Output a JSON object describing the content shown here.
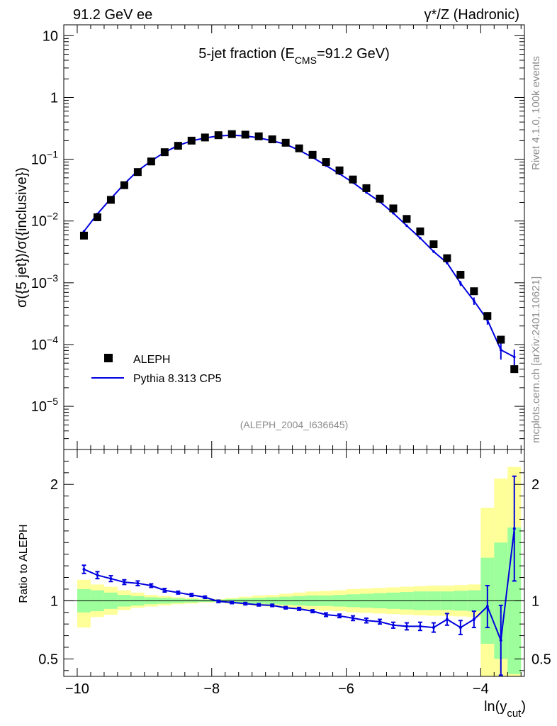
{
  "header": {
    "left": "91.2 GeV ee",
    "right": "γ*/Z (Hadronic)"
  },
  "side_labels": {
    "rivet": "Rivet 4.1.0,  100k events",
    "mcplots": "mcplots.cern.ch [arXiv:2401.10621]"
  },
  "colors": {
    "data": "#000000",
    "mc": "#0000e0",
    "band_inner": "#9cff9c",
    "band_outer": "#ffff99"
  },
  "chart_data": [
    {
      "type": "scatter",
      "title": "5-jet fraction",
      "title_main": "5-jet fraction (E",
      "title_sub": "CMS",
      "title_tail": "=91.2 GeV)",
      "ylabel": "σ({5 jet})/σ({inclusive})",
      "xlabel": "ln(y",
      "xlabel_sub": "cut",
      "xlabel_tail": ")",
      "yscale": "log",
      "xlim": [
        -10.2,
        -3.35
      ],
      "ylim": [
        2e-06,
        15
      ],
      "y_ticks": [
        {
          "value": 10,
          "label": "10"
        },
        {
          "value": 1,
          "label": "1"
        },
        {
          "value": 0.1,
          "base": "10",
          "exp": "−1"
        },
        {
          "value": 0.01,
          "base": "10",
          "exp": "−2"
        },
        {
          "value": 0.001,
          "base": "10",
          "exp": "−3"
        },
        {
          "value": 0.0001,
          "base": "10",
          "exp": "−4"
        },
        {
          "value": 1e-05,
          "base": "10",
          "exp": "−5"
        }
      ],
      "analysis_tag": "(ALEPH_2004_I636645)",
      "legend": {
        "position": "lower-left",
        "entries": [
          "ALEPH",
          "Pythia 8.313 CP5"
        ]
      },
      "series": [
        {
          "name": "ALEPH",
          "x": [
            -9.9,
            -9.7,
            -9.5,
            -9.3,
            -9.1,
            -8.9,
            -8.7,
            -8.5,
            -8.3,
            -8.1,
            -7.9,
            -7.7,
            -7.5,
            -7.3,
            -7.1,
            -6.9,
            -6.7,
            -6.5,
            -6.3,
            -6.1,
            -5.9,
            -5.7,
            -5.5,
            -5.3,
            -5.1,
            -4.9,
            -4.7,
            -4.5,
            -4.3,
            -4.1,
            -3.9,
            -3.7,
            -3.5
          ],
          "y": [
            0.0058,
            0.0115,
            0.022,
            0.038,
            0.062,
            0.092,
            0.13,
            0.165,
            0.2,
            0.225,
            0.245,
            0.255,
            0.25,
            0.235,
            0.21,
            0.185,
            0.15,
            0.118,
            0.09,
            0.066,
            0.047,
            0.034,
            0.023,
            0.016,
            0.0108,
            0.0068,
            0.0042,
            0.0025,
            0.00135,
            0.00073,
            0.00029,
            0.00012,
            4e-05
          ]
        },
        {
          "name": "Pythia 8.313 CP5",
          "x": [
            -9.9,
            -9.7,
            -9.5,
            -9.3,
            -9.1,
            -8.9,
            -8.7,
            -8.5,
            -8.3,
            -8.1,
            -7.9,
            -7.7,
            -7.5,
            -7.3,
            -7.1,
            -6.9,
            -6.7,
            -6.5,
            -6.3,
            -6.1,
            -5.9,
            -5.7,
            -5.5,
            -5.3,
            -5.1,
            -4.9,
            -4.7,
            -4.5,
            -4.3,
            -4.1,
            -3.9,
            -3.7,
            -3.5
          ],
          "y": [
            0.0068,
            0.013,
            0.023,
            0.04,
            0.065,
            0.094,
            0.13,
            0.167,
            0.198,
            0.221,
            0.238,
            0.245,
            0.238,
            0.222,
            0.199,
            0.175,
            0.14,
            0.107,
            0.079,
            0.058,
            0.042,
            0.029,
            0.0205,
            0.0134,
            0.0084,
            0.0053,
            0.0032,
            0.0021,
            0.00098,
            0.00051,
            0.00025,
            8.2e-05,
            6.3e-05
          ],
          "yerr": [
            0.0002,
            0.0003,
            0.0004,
            0.0006,
            0.0008,
            0.001,
            0.0012,
            0.0013,
            0.0015,
            0.0016,
            0.0017,
            0.0017,
            0.0017,
            0.0016,
            0.0015,
            0.0014,
            0.0012,
            0.001,
            0.0009,
            0.0007,
            0.0006,
            0.0005,
            0.0004,
            0.0003,
            0.00025,
            0.0002,
            0.00015,
            0.00012,
            9e-05,
            7e-05,
            4e-05,
            2.5e-05,
            2e-05
          ]
        }
      ]
    },
    {
      "type": "line",
      "ylabel": "Ratio to ALEPH",
      "xlim": [
        -10.2,
        -3.35
      ],
      "ylim": [
        0.35,
        2.3
      ],
      "x_ticks": [
        -10,
        -8,
        -6,
        -4
      ],
      "x_tick_labels": [
        "−10",
        "−8",
        "−6",
        "−4"
      ],
      "y_ticks": [
        0.5,
        1,
        2
      ],
      "y_tick_labels": [
        "0.5",
        "1",
        "2"
      ],
      "series": [
        {
          "name": "Pythia 8.313 CP5 / ALEPH",
          "x": [
            -9.9,
            -9.7,
            -9.5,
            -9.3,
            -9.1,
            -8.9,
            -8.7,
            -8.5,
            -8.3,
            -8.1,
            -7.9,
            -7.7,
            -7.5,
            -7.3,
            -7.1,
            -6.9,
            -6.7,
            -6.5,
            -6.3,
            -6.1,
            -5.9,
            -5.7,
            -5.5,
            -5.3,
            -5.1,
            -4.9,
            -4.7,
            -4.5,
            -4.3,
            -4.1,
            -3.9,
            -3.7,
            -3.5
          ],
          "y": [
            1.27,
            1.22,
            1.19,
            1.16,
            1.15,
            1.13,
            1.09,
            1.07,
            1.05,
            1.03,
            0.995,
            0.985,
            0.975,
            0.965,
            0.96,
            0.94,
            0.93,
            0.91,
            0.88,
            0.87,
            0.85,
            0.83,
            0.82,
            0.79,
            0.78,
            0.78,
            0.77,
            0.84,
            0.77,
            0.84,
            0.95,
            0.66,
            1.62
          ],
          "yerr": [
            0.035,
            0.03,
            0.025,
            0.02,
            0.02,
            0.015,
            0.015,
            0.012,
            0.012,
            0.01,
            0.01,
            0.01,
            0.01,
            0.01,
            0.01,
            0.01,
            0.012,
            0.012,
            0.015,
            0.015,
            0.02,
            0.02,
            0.02,
            0.025,
            0.03,
            0.035,
            0.04,
            0.05,
            0.06,
            0.07,
            0.18,
            0.3,
            0.45
          ]
        },
        {
          "name": "ALEPH stat",
          "x_lo": [
            -10.0,
            -9.8,
            -9.6,
            -9.4,
            -9.2,
            -9.0,
            -8.8,
            -8.6,
            -8.4,
            -8.2,
            -8.0,
            -7.8,
            -7.6,
            -7.4,
            -7.2,
            -7.0,
            -6.8,
            -6.6,
            -6.4,
            -6.2,
            -6.0,
            -5.8,
            -5.6,
            -5.4,
            -5.2,
            -5.0,
            -4.8,
            -4.6,
            -4.4,
            -4.2,
            -4.0,
            -3.8,
            -3.6
          ],
          "x_hi": [
            -9.8,
            -9.6,
            -9.4,
            -9.2,
            -9.0,
            -8.8,
            -8.6,
            -8.4,
            -8.2,
            -8.0,
            -7.8,
            -7.6,
            -7.4,
            -7.2,
            -7.0,
            -6.8,
            -6.6,
            -6.4,
            -6.2,
            -6.0,
            -5.8,
            -5.6,
            -5.4,
            -5.2,
            -5.0,
            -4.8,
            -4.6,
            -4.4,
            -4.2,
            -4.0,
            -3.8,
            -3.6,
            -3.4
          ],
          "inner_lo": [
            0.9,
            0.91,
            0.93,
            0.95,
            0.96,
            0.97,
            0.975,
            0.98,
            0.985,
            0.99,
            0.99,
            0.985,
            0.98,
            0.975,
            0.97,
            0.965,
            0.96,
            0.955,
            0.955,
            0.95,
            0.945,
            0.94,
            0.935,
            0.93,
            0.925,
            0.92,
            0.92,
            0.92,
            0.915,
            0.91,
            0.63,
            0.5,
            0.37
          ],
          "inner_hi": [
            1.1,
            1.09,
            1.07,
            1.05,
            1.04,
            1.03,
            1.025,
            1.02,
            1.015,
            1.01,
            1.01,
            1.015,
            1.02,
            1.025,
            1.03,
            1.035,
            1.04,
            1.045,
            1.045,
            1.05,
            1.055,
            1.06,
            1.065,
            1.07,
            1.075,
            1.08,
            1.08,
            1.08,
            1.085,
            1.09,
            1.37,
            1.5,
            1.63
          ],
          "outer_lo": [
            0.77,
            0.86,
            0.88,
            0.92,
            0.94,
            0.95,
            0.96,
            0.97,
            0.975,
            0.985,
            0.985,
            0.975,
            0.965,
            0.955,
            0.95,
            0.94,
            0.93,
            0.92,
            0.915,
            0.91,
            0.9,
            0.895,
            0.89,
            0.885,
            0.88,
            0.875,
            0.87,
            0.87,
            0.865,
            0.86,
            0.35,
            0.35,
            0.35
          ],
          "outer_hi": [
            1.18,
            1.14,
            1.12,
            1.09,
            1.07,
            1.05,
            1.04,
            1.03,
            1.025,
            1.015,
            1.015,
            1.025,
            1.035,
            1.045,
            1.05,
            1.06,
            1.07,
            1.08,
            1.085,
            1.09,
            1.1,
            1.105,
            1.11,
            1.115,
            1.12,
            1.125,
            1.13,
            1.13,
            1.135,
            1.14,
            1.8,
            2.05,
            2.15
          ]
        }
      ]
    }
  ]
}
